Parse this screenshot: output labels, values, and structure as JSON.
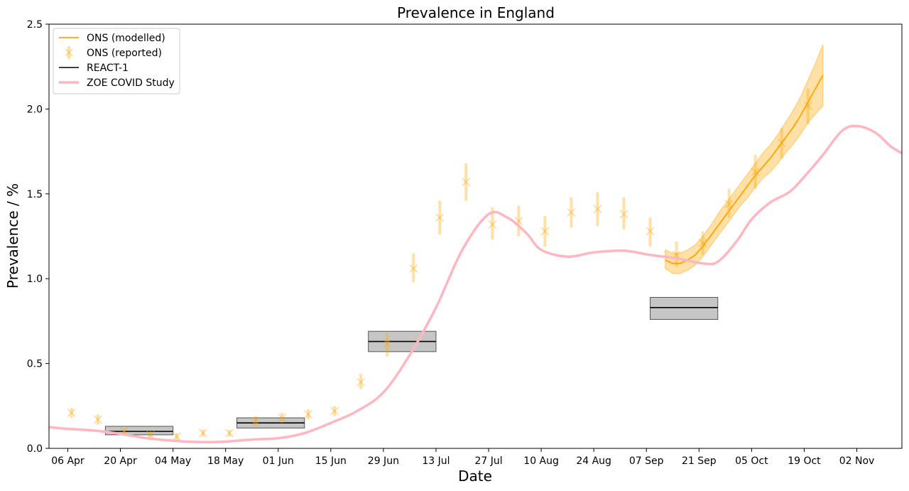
{
  "chart_data": {
    "type": "line",
    "title": "Prevalence in England",
    "xlabel": "Date",
    "ylabel": "Prevalence / %",
    "ylim": [
      0,
      2.5
    ],
    "xlim": [
      "2020-04-01",
      "2020-11-14"
    ],
    "grid": false,
    "legend_position": "top-left",
    "x_ticks": [
      {
        "date": "2020-04-06",
        "label": "06 Apr"
      },
      {
        "date": "2020-04-20",
        "label": "20 Apr"
      },
      {
        "date": "2020-05-04",
        "label": "04 May"
      },
      {
        "date": "2020-05-18",
        "label": "18 May"
      },
      {
        "date": "2020-06-01",
        "label": "01 Jun"
      },
      {
        "date": "2020-06-15",
        "label": "15 Jun"
      },
      {
        "date": "2020-06-29",
        "label": "29 Jun"
      },
      {
        "date": "2020-07-13",
        "label": "13 Jul"
      },
      {
        "date": "2020-07-27",
        "label": "27 Jul"
      },
      {
        "date": "2020-08-10",
        "label": "10 Aug"
      },
      {
        "date": "2020-08-24",
        "label": "24 Aug"
      },
      {
        "date": "2020-09-07",
        "label": "07 Sep"
      },
      {
        "date": "2020-09-21",
        "label": "21 Sep"
      },
      {
        "date": "2020-10-05",
        "label": "05 Oct"
      },
      {
        "date": "2020-10-19",
        "label": "19 Oct"
      },
      {
        "date": "2020-11-02",
        "label": "02 Nov"
      }
    ],
    "y_ticks": [
      {
        "value": 0.0,
        "label": "0.0"
      },
      {
        "value": 0.5,
        "label": "0.5"
      },
      {
        "value": 1.0,
        "label": "1.0"
      },
      {
        "value": 1.5,
        "label": "1.5"
      },
      {
        "value": 2.0,
        "label": "2.0"
      },
      {
        "value": 2.5,
        "label": "2.5"
      }
    ],
    "series": [
      {
        "name": "ONS (modelled)",
        "kind": "line_with_band",
        "color": "#FFA500",
        "points": [
          {
            "x": "2020-09-12",
            "y": 1.11,
            "lo": 1.06,
            "hi": 1.17
          },
          {
            "x": "2020-09-14",
            "y": 1.09,
            "lo": 1.03,
            "hi": 1.15
          },
          {
            "x": "2020-09-16",
            "y": 1.09,
            "lo": 1.03,
            "hi": 1.15
          },
          {
            "x": "2020-09-18",
            "y": 1.11,
            "lo": 1.05,
            "hi": 1.17
          },
          {
            "x": "2020-09-20",
            "y": 1.14,
            "lo": 1.08,
            "hi": 1.2
          },
          {
            "x": "2020-09-22",
            "y": 1.19,
            "lo": 1.13,
            "hi": 1.25
          },
          {
            "x": "2020-09-24",
            "y": 1.25,
            "lo": 1.19,
            "hi": 1.31
          },
          {
            "x": "2020-09-26",
            "y": 1.31,
            "lo": 1.25,
            "hi": 1.38
          },
          {
            "x": "2020-09-28",
            "y": 1.37,
            "lo": 1.31,
            "hi": 1.44
          },
          {
            "x": "2020-09-30",
            "y": 1.43,
            "lo": 1.37,
            "hi": 1.5
          },
          {
            "x": "2020-10-02",
            "y": 1.49,
            "lo": 1.43,
            "hi": 1.56
          },
          {
            "x": "2020-10-04",
            "y": 1.55,
            "lo": 1.48,
            "hi": 1.62
          },
          {
            "x": "2020-10-06",
            "y": 1.61,
            "lo": 1.54,
            "hi": 1.68
          },
          {
            "x": "2020-10-08",
            "y": 1.66,
            "lo": 1.59,
            "hi": 1.74
          },
          {
            "x": "2020-10-10",
            "y": 1.71,
            "lo": 1.63,
            "hi": 1.79
          },
          {
            "x": "2020-10-12",
            "y": 1.77,
            "lo": 1.68,
            "hi": 1.85
          },
          {
            "x": "2020-10-14",
            "y": 1.83,
            "lo": 1.74,
            "hi": 1.92
          },
          {
            "x": "2020-10-16",
            "y": 1.89,
            "lo": 1.79,
            "hi": 1.99
          },
          {
            "x": "2020-10-18",
            "y": 1.96,
            "lo": 1.85,
            "hi": 2.07
          },
          {
            "x": "2020-10-20",
            "y": 2.04,
            "lo": 1.92,
            "hi": 2.17
          },
          {
            "x": "2020-10-22",
            "y": 2.12,
            "lo": 1.97,
            "hi": 2.27
          },
          {
            "x": "2020-10-24",
            "y": 2.2,
            "lo": 2.02,
            "hi": 2.38
          }
        ]
      },
      {
        "name": "ONS (reported)",
        "kind": "points_with_error",
        "color": "#FFA500",
        "points": [
          {
            "x": "2020-04-07",
            "y": 0.21,
            "lo": 0.18,
            "hi": 0.24
          },
          {
            "x": "2020-04-14",
            "y": 0.17,
            "lo": 0.14,
            "hi": 0.2
          },
          {
            "x": "2020-04-21",
            "y": 0.1,
            "lo": 0.08,
            "hi": 0.12
          },
          {
            "x": "2020-04-28",
            "y": 0.08,
            "lo": 0.06,
            "hi": 0.1
          },
          {
            "x": "2020-05-05",
            "y": 0.07,
            "lo": 0.05,
            "hi": 0.09
          },
          {
            "x": "2020-05-12",
            "y": 0.09,
            "lo": 0.07,
            "hi": 0.11
          },
          {
            "x": "2020-05-19",
            "y": 0.09,
            "lo": 0.07,
            "hi": 0.11
          },
          {
            "x": "2020-05-26",
            "y": 0.16,
            "lo": 0.13,
            "hi": 0.19
          },
          {
            "x": "2020-06-02",
            "y": 0.18,
            "lo": 0.15,
            "hi": 0.21
          },
          {
            "x": "2020-06-09",
            "y": 0.2,
            "lo": 0.17,
            "hi": 0.23
          },
          {
            "x": "2020-06-16",
            "y": 0.22,
            "lo": 0.19,
            "hi": 0.25
          },
          {
            "x": "2020-06-23",
            "y": 0.39,
            "lo": 0.35,
            "hi": 0.44
          },
          {
            "x": "2020-06-30",
            "y": 0.62,
            "lo": 0.54,
            "hi": 0.68
          },
          {
            "x": "2020-07-07",
            "y": 1.06,
            "lo": 0.98,
            "hi": 1.15
          },
          {
            "x": "2020-07-14",
            "y": 1.36,
            "lo": 1.26,
            "hi": 1.46
          },
          {
            "x": "2020-07-21",
            "y": 1.57,
            "lo": 1.46,
            "hi": 1.68
          },
          {
            "x": "2020-07-28",
            "y": 1.32,
            "lo": 1.23,
            "hi": 1.42
          },
          {
            "x": "2020-08-04",
            "y": 1.34,
            "lo": 1.25,
            "hi": 1.43
          },
          {
            "x": "2020-08-11",
            "y": 1.28,
            "lo": 1.19,
            "hi": 1.37
          },
          {
            "x": "2020-08-18",
            "y": 1.39,
            "lo": 1.3,
            "hi": 1.48
          },
          {
            "x": "2020-08-25",
            "y": 1.41,
            "lo": 1.31,
            "hi": 1.51
          },
          {
            "x": "2020-09-01",
            "y": 1.38,
            "lo": 1.29,
            "hi": 1.48
          },
          {
            "x": "2020-09-08",
            "y": 1.28,
            "lo": 1.19,
            "hi": 1.36
          },
          {
            "x": "2020-09-15",
            "y": 1.14,
            "lo": 1.07,
            "hi": 1.22
          },
          {
            "x": "2020-09-22",
            "y": 1.21,
            "lo": 1.14,
            "hi": 1.28
          },
          {
            "x": "2020-09-29",
            "y": 1.44,
            "lo": 1.36,
            "hi": 1.53
          },
          {
            "x": "2020-10-06",
            "y": 1.63,
            "lo": 1.53,
            "hi": 1.73
          },
          {
            "x": "2020-10-13",
            "y": 1.8,
            "lo": 1.71,
            "hi": 1.89
          },
          {
            "x": "2020-10-20",
            "y": 2.02,
            "lo": 1.91,
            "hi": 2.12
          }
        ]
      },
      {
        "name": "REACT-1",
        "kind": "interval_boxes",
        "color": "#000000",
        "band_color": "#808080",
        "boxes": [
          {
            "x0": "2020-04-16",
            "x1": "2020-05-04",
            "y": 0.1,
            "lo": 0.08,
            "hi": 0.13
          },
          {
            "x0": "2020-05-21",
            "x1": "2020-06-08",
            "y": 0.15,
            "lo": 0.12,
            "hi": 0.18
          },
          {
            "x0": "2020-06-25",
            "x1": "2020-07-13",
            "y": 0.63,
            "lo": 0.57,
            "hi": 0.69
          },
          {
            "x0": "2020-09-08",
            "x1": "2020-09-26",
            "y": 0.83,
            "lo": 0.76,
            "hi": 0.89
          }
        ]
      },
      {
        "name": "ZOE COVID Study",
        "kind": "line",
        "color": "#FFB6C1",
        "points": [
          {
            "x": "2020-04-01",
            "y": 0.125
          },
          {
            "x": "2020-04-06",
            "y": 0.115
          },
          {
            "x": "2020-04-13",
            "y": 0.105
          },
          {
            "x": "2020-04-20",
            "y": 0.085
          },
          {
            "x": "2020-04-27",
            "y": 0.06
          },
          {
            "x": "2020-05-04",
            "y": 0.045
          },
          {
            "x": "2020-05-11",
            "y": 0.037
          },
          {
            "x": "2020-05-18",
            "y": 0.04
          },
          {
            "x": "2020-05-25",
            "y": 0.052
          },
          {
            "x": "2020-06-01",
            "y": 0.06
          },
          {
            "x": "2020-06-08",
            "y": 0.09
          },
          {
            "x": "2020-06-15",
            "y": 0.15
          },
          {
            "x": "2020-06-22",
            "y": 0.22
          },
          {
            "x": "2020-06-29",
            "y": 0.33
          },
          {
            "x": "2020-07-06",
            "y": 0.55
          },
          {
            "x": "2020-07-13",
            "y": 0.83
          },
          {
            "x": "2020-07-20",
            "y": 1.17
          },
          {
            "x": "2020-07-27",
            "y": 1.38
          },
          {
            "x": "2020-08-01",
            "y": 1.36
          },
          {
            "x": "2020-08-06",
            "y": 1.27
          },
          {
            "x": "2020-08-10",
            "y": 1.17
          },
          {
            "x": "2020-08-17",
            "y": 1.13
          },
          {
            "x": "2020-08-24",
            "y": 1.155
          },
          {
            "x": "2020-09-01",
            "y": 1.165
          },
          {
            "x": "2020-09-08",
            "y": 1.14
          },
          {
            "x": "2020-09-15",
            "y": 1.12
          },
          {
            "x": "2020-09-22",
            "y": 1.09
          },
          {
            "x": "2020-09-26",
            "y": 1.1
          },
          {
            "x": "2020-10-01",
            "y": 1.22
          },
          {
            "x": "2020-10-05",
            "y": 1.35
          },
          {
            "x": "2020-10-10",
            "y": 1.45
          },
          {
            "x": "2020-10-15",
            "y": 1.51
          },
          {
            "x": "2020-10-19",
            "y": 1.6
          },
          {
            "x": "2020-10-24",
            "y": 1.73
          },
          {
            "x": "2020-10-29",
            "y": 1.87
          },
          {
            "x": "2020-11-02",
            "y": 1.9
          },
          {
            "x": "2020-11-07",
            "y": 1.86
          },
          {
            "x": "2020-11-11",
            "y": 1.78
          },
          {
            "x": "2020-11-14",
            "y": 1.74
          }
        ]
      }
    ]
  }
}
